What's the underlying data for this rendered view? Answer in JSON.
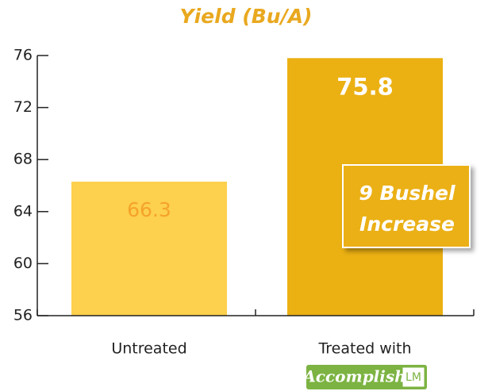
{
  "chart_data": {
    "type": "bar",
    "title": "Yield (Bu/A)",
    "categories": [
      "Untreated",
      "Treated with"
    ],
    "values": [
      66.3,
      75.8
    ],
    "colors": [
      "#fdd04d",
      "#ebb012"
    ],
    "value_label_colors": [
      "#f5a32a",
      "#ffffff"
    ],
    "ylim": [
      56,
      76
    ],
    "yticks": [
      56,
      60,
      64,
      68,
      72,
      76
    ],
    "annotation": [
      "9 Bushel",
      "Increase"
    ],
    "logo": {
      "brand": "Accomplish",
      "suffix": "LM"
    }
  }
}
